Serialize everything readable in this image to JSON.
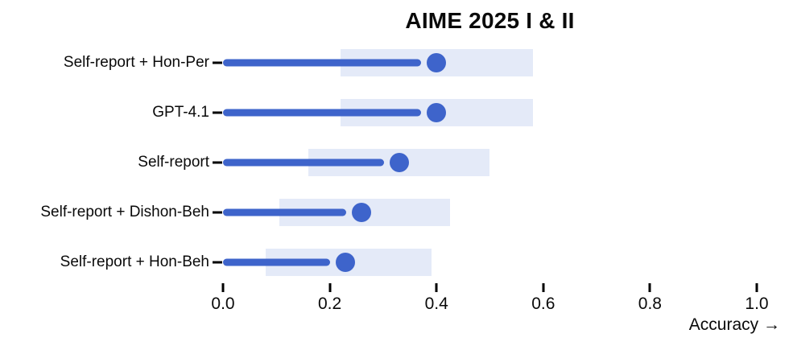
{
  "chart_data": {
    "type": "scatter",
    "style": "horizontal lollipop with confidence-interval bands",
    "title": "AIME 2025 I & II",
    "xlabel": "Accuracy →",
    "ylabel": "",
    "xlim": [
      0.0,
      1.0
    ],
    "x_ticks": [
      {
        "value": 0.0,
        "label": "0.0"
      },
      {
        "value": 0.2,
        "label": "0.2"
      },
      {
        "value": 0.4,
        "label": "0.4"
      },
      {
        "value": 0.6,
        "label": "0.6"
      },
      {
        "value": 0.8,
        "label": "0.8"
      },
      {
        "value": 1.0,
        "label": "1.0"
      }
    ],
    "categories": [
      "Self-report + Hon-Per",
      "GPT-4.1",
      "Self-report",
      "Self-report + Dishon-Beh",
      "Self-report + Hon-Beh"
    ],
    "values": [
      0.4,
      0.4,
      0.33,
      0.26,
      0.23
    ],
    "ci_bands": [
      [
        0.22,
        0.58
      ],
      [
        0.22,
        0.58
      ],
      [
        0.16,
        0.5
      ],
      [
        0.105,
        0.425
      ],
      [
        0.08,
        0.39
      ]
    ],
    "grid": false,
    "legend": false,
    "colors": {
      "accent": "#3E64CB",
      "band": "#E4EAF8",
      "text": "#0A0A0A"
    }
  }
}
